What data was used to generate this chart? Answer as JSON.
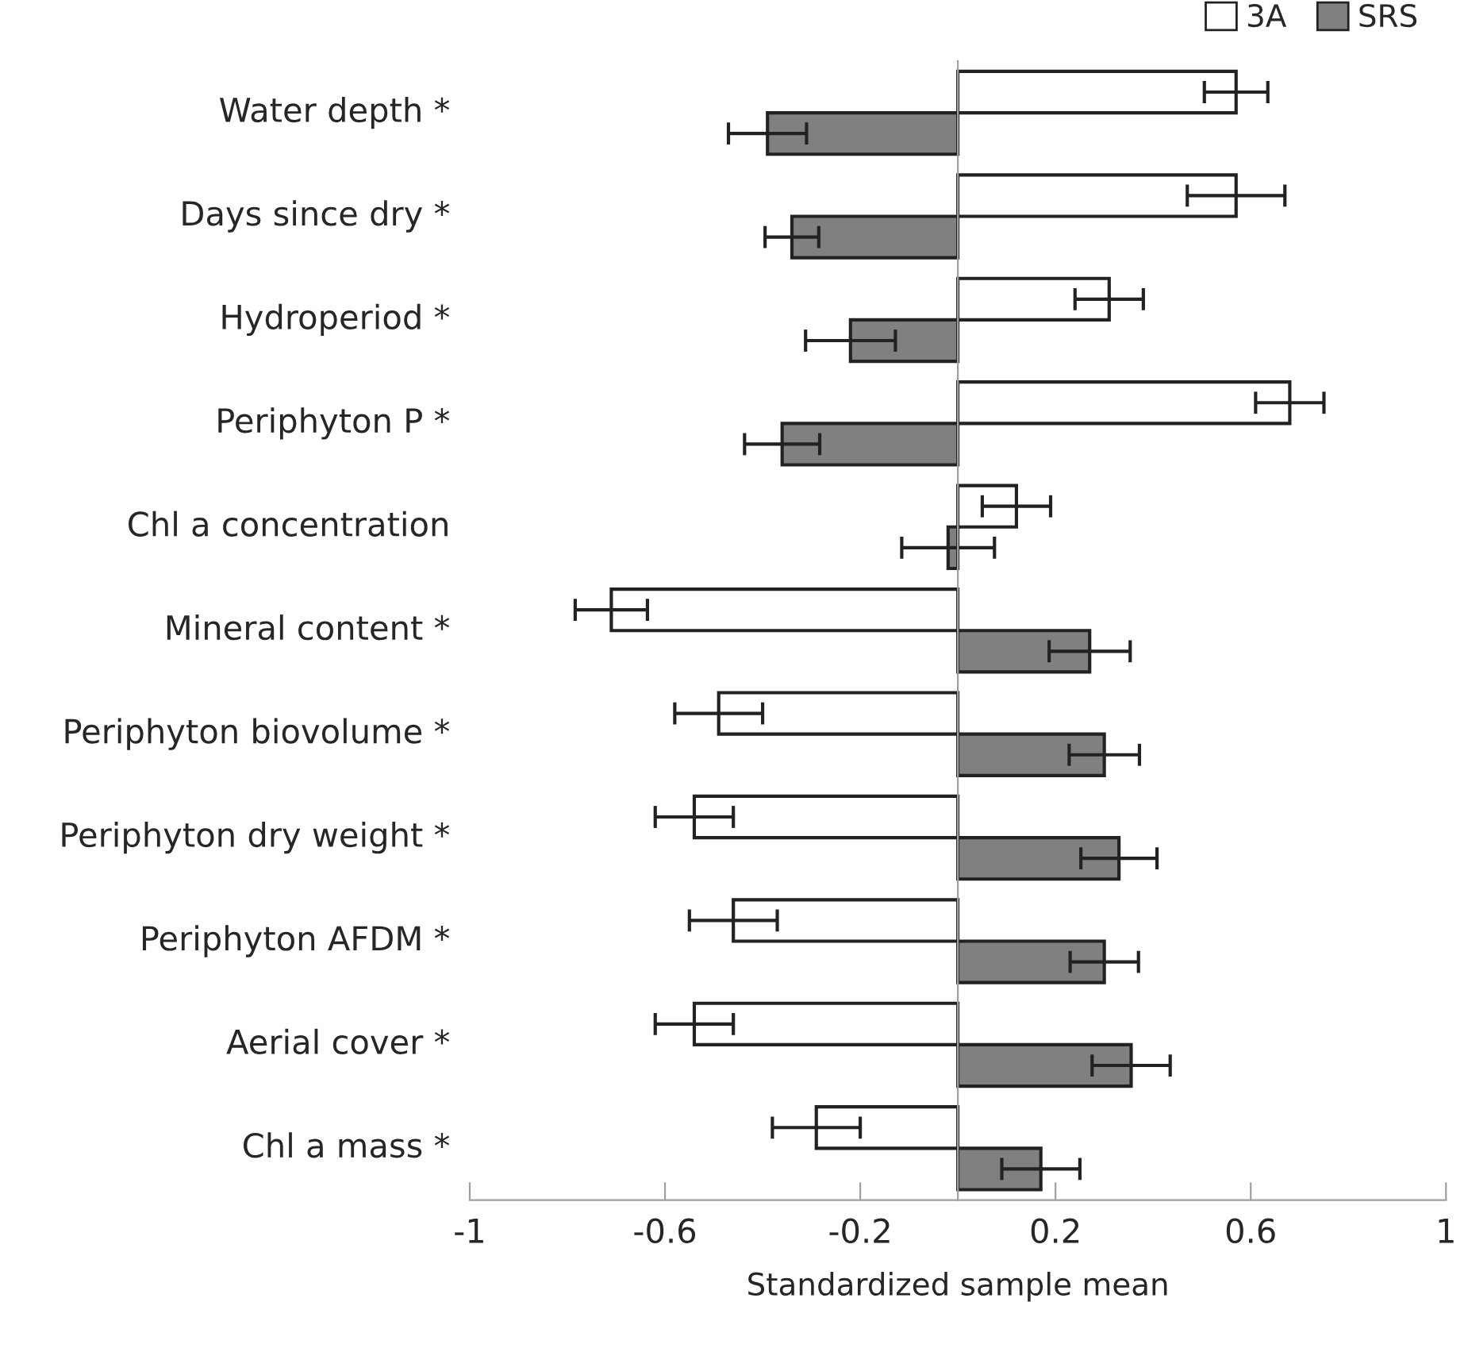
{
  "chart_data": {
    "type": "bar",
    "orientation": "horizontal",
    "xlabel": "Standardized sample mean",
    "categories": [
      "Water depth *",
      "Days since dry *",
      "Hydroperiod *",
      "Periphyton P *",
      "Chl a concentration",
      "Mineral content *",
      "Periphyton biovolume *",
      "Periphyton dry weight *",
      "Periphyton AFDM *",
      "Aerial cover *",
      "Chl a mass *"
    ],
    "series": [
      {
        "name": "3A",
        "color": "#ffffff",
        "values": [
          0.57,
          0.57,
          0.31,
          0.68,
          0.12,
          -0.71,
          -0.49,
          -0.54,
          -0.46,
          -0.54,
          -0.29
        ],
        "errors": [
          0.065,
          0.1,
          0.07,
          0.07,
          0.07,
          0.074,
          0.09,
          0.08,
          0.09,
          0.08,
          0.09
        ]
      },
      {
        "name": "SRS",
        "color": "#808080",
        "values": [
          -0.39,
          -0.34,
          -0.22,
          -0.36,
          -0.02,
          0.27,
          0.3,
          0.33,
          0.3,
          0.355,
          0.17
        ],
        "errors": [
          0.08,
          0.055,
          0.092,
          0.077,
          0.095,
          0.083,
          0.072,
          0.078,
          0.07,
          0.08,
          0.08
        ]
      }
    ],
    "xlim": [
      -1,
      1
    ],
    "xticks": [
      -1,
      -0.6,
      -0.2,
      0.2,
      0.6,
      1
    ],
    "grid": false,
    "legend": "top right"
  }
}
